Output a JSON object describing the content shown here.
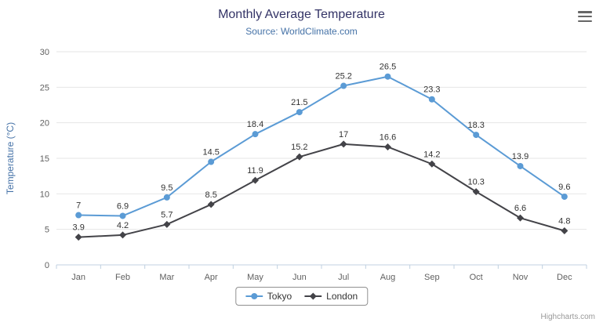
{
  "chart_data": {
    "type": "line",
    "title": "Monthly Average Temperature",
    "subtitle": "Source: WorldClimate.com",
    "xlabel": "",
    "ylabel": "Temperature (°C)",
    "ylim": [
      0,
      30
    ],
    "y_ticks": [
      0,
      5,
      10,
      15,
      20,
      25,
      30
    ],
    "grid": true,
    "legend_position": "bottom",
    "categories": [
      "Jan",
      "Feb",
      "Mar",
      "Apr",
      "May",
      "Jun",
      "Jul",
      "Aug",
      "Sep",
      "Oct",
      "Nov",
      "Dec"
    ],
    "series": [
      {
        "name": "Tokyo",
        "marker": "circle",
        "color": "#5b9bd5",
        "values": [
          7,
          6.9,
          9.5,
          14.5,
          18.4,
          21.5,
          25.2,
          26.5,
          23.3,
          18.3,
          13.9,
          9.6
        ]
      },
      {
        "name": "London",
        "marker": "diamond",
        "color": "#434348",
        "values": [
          3.9,
          4.2,
          5.7,
          8.5,
          11.9,
          15.2,
          17,
          16.6,
          14.2,
          10.3,
          6.6,
          4.8
        ]
      }
    ]
  },
  "credits": "Highcharts.com",
  "icons": {
    "context_menu": "hamburger-icon",
    "tokyo_marker": "circle-marker-icon",
    "london_marker": "diamond-marker-icon"
  },
  "colors": {
    "title": "#333366",
    "subtitle": "#4572a7",
    "axis_title": "#4572a7",
    "axis_label": "#606060",
    "data_label": "#333333",
    "gridline": "#e6e6e6",
    "axis_line": "#c0d0e0",
    "legend_border": "#909090",
    "credits": "#999999"
  }
}
